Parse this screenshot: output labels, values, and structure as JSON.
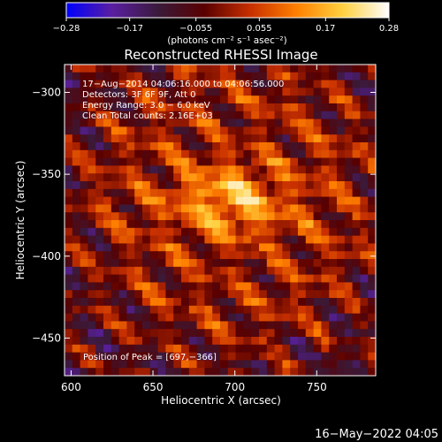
{
  "chart_data": {
    "type": "heatmap",
    "title": "Reconstructed RHESSI Image",
    "xlabel": "Heliocentric X (arcsec)",
    "ylabel": "Heliocentric Y (arcsec)",
    "xlim": [
      596,
      786
    ],
    "ylim": [
      -473,
      -283
    ],
    "x_ticks": [
      600,
      650,
      700,
      750
    ],
    "x_tick_labels": [
      "600",
      "650",
      "700",
      "750"
    ],
    "y_ticks": [
      -300,
      -350,
      -400,
      -450
    ],
    "y_tick_labels": [
      "−300",
      "−350",
      "−400",
      "−450"
    ],
    "colorbar": {
      "range": [
        -0.28,
        0.28
      ],
      "ticks": [
        -0.28,
        -0.17,
        -0.055,
        0.055,
        0.17,
        0.28
      ],
      "tick_labels": [
        "−0.28",
        "−0.17",
        "−0.055",
        "0.055",
        "0.17",
        "0.28"
      ],
      "unit_label": "(photons cm⁻² s⁻¹ asec⁻²)",
      "colors": [
        "#0000ff",
        "#5a1fa0",
        "#3a1a3a",
        "#5a0000",
        "#c83000",
        "#ff8000",
        "#ffd040",
        "#ffffff"
      ]
    },
    "annotations": [
      "17−Aug−2014 04:06:16.000 to 04:06:56.000",
      "Detectors: 3F 6F 9F, Att 0",
      "Energy Range: 3.0 − 6.0 keV",
      "Clean     Total counts: 2.16E+03"
    ],
    "peak_label": "Position of Peak = [697,−366]",
    "peak_position": [
      697,
      -366
    ],
    "grid": false,
    "grid_cells": 40
  },
  "footer": {
    "timestamp": "16−May−2022 04:05"
  }
}
